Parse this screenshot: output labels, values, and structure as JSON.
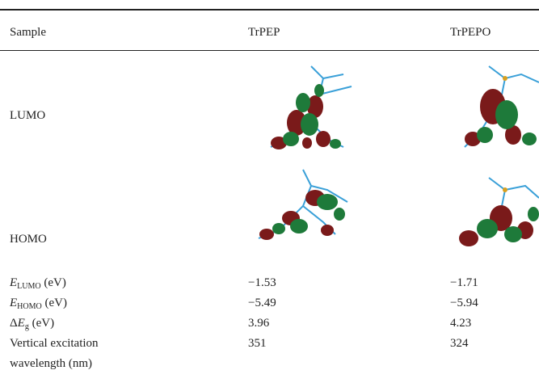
{
  "table": {
    "header": [
      "Sample",
      "TrPEP",
      "TrPEPO"
    ],
    "orbital_rows": [
      {
        "label": "LUMO"
      },
      {
        "label": "HOMO"
      }
    ],
    "rows": [
      {
        "prefix": "",
        "symbol": "E",
        "subscript": "LUMO",
        "unit": " (eV)",
        "values": [
          "−1.53",
          "−1.71"
        ]
      },
      {
        "prefix": "",
        "symbol": "E",
        "subscript": "HOMO",
        "unit": " (eV)",
        "values": [
          "−5.49",
          "−5.94"
        ]
      },
      {
        "prefix": "Δ",
        "symbol": "E",
        "subscript": "g",
        "unit": " (eV)",
        "values": [
          "3.96",
          "4.23"
        ]
      },
      {
        "label_lines": [
          "Vertical excitation",
          "wavelength (nm)"
        ],
        "values": [
          "351",
          "324"
        ]
      }
    ]
  }
}
